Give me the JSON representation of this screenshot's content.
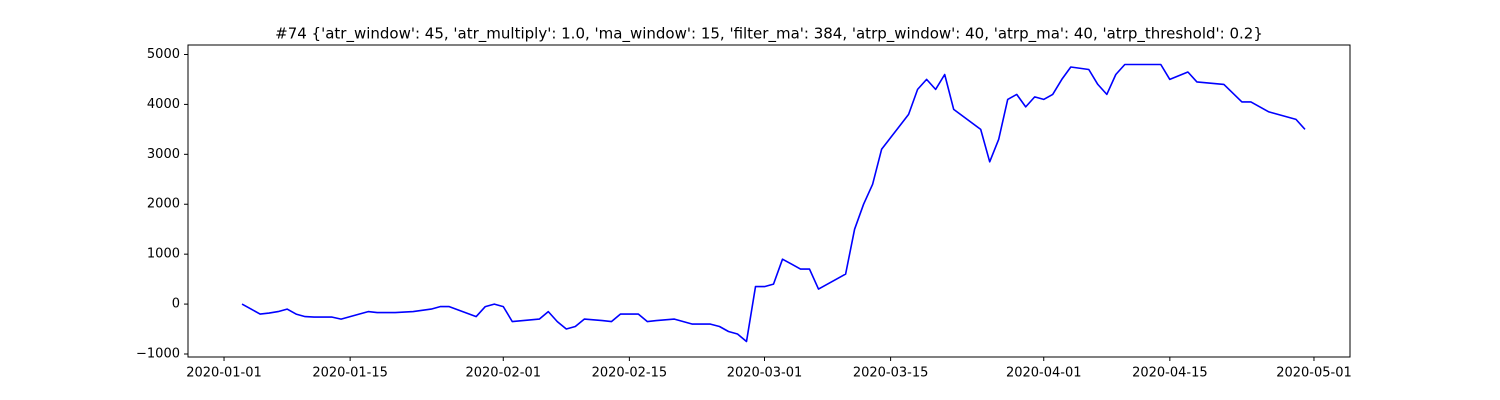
{
  "chart_data": {
    "type": "line",
    "title": "#74 {'atr_window': 45, 'atr_multiply': 1.0, 'ma_window': 15, 'filter_ma': 384, 'atrp_window': 40, 'atrp_ma': 40, 'atrp_threshold': 0.2}",
    "x": [
      "2020-01-03",
      "2020-01-04",
      "2020-01-05",
      "2020-01-06",
      "2020-01-07",
      "2020-01-08",
      "2020-01-09",
      "2020-01-10",
      "2020-01-11",
      "2020-01-13",
      "2020-01-14",
      "2020-01-15",
      "2020-01-16",
      "2020-01-17",
      "2020-01-18",
      "2020-01-20",
      "2020-01-22",
      "2020-01-24",
      "2020-01-25",
      "2020-01-26",
      "2020-01-29",
      "2020-01-30",
      "2020-01-31",
      "2020-02-01",
      "2020-02-02",
      "2020-02-05",
      "2020-02-06",
      "2020-02-07",
      "2020-02-08",
      "2020-02-09",
      "2020-02-10",
      "2020-02-12",
      "2020-02-13",
      "2020-02-14",
      "2020-02-16",
      "2020-02-17",
      "2020-02-18",
      "2020-02-20",
      "2020-02-22",
      "2020-02-24",
      "2020-02-25",
      "2020-02-26",
      "2020-02-27",
      "2020-02-28",
      "2020-02-29",
      "2020-03-01",
      "2020-03-02",
      "2020-03-03",
      "2020-03-04",
      "2020-03-05",
      "2020-03-06",
      "2020-03-07",
      "2020-03-09",
      "2020-03-10",
      "2020-03-11",
      "2020-03-12",
      "2020-03-13",
      "2020-03-14",
      "2020-03-17",
      "2020-03-18",
      "2020-03-19",
      "2020-03-20",
      "2020-03-21",
      "2020-03-22",
      "2020-03-25",
      "2020-03-26",
      "2020-03-27",
      "2020-03-28",
      "2020-03-29",
      "2020-03-30",
      "2020-03-31",
      "2020-04-01",
      "2020-04-02",
      "2020-04-03",
      "2020-04-04",
      "2020-04-06",
      "2020-04-07",
      "2020-04-08",
      "2020-04-09",
      "2020-04-10",
      "2020-04-14",
      "2020-04-15",
      "2020-04-17",
      "2020-04-18",
      "2020-04-21",
      "2020-04-23",
      "2020-04-24",
      "2020-04-26",
      "2020-04-29",
      "2020-04-30"
    ],
    "series": [
      {
        "color": "#0000ff",
        "values": [
          0,
          -100,
          -200,
          -180,
          -150,
          -100,
          -200,
          -250,
          -260,
          -260,
          -300,
          -250,
          -200,
          -150,
          -170,
          -170,
          -150,
          -100,
          -50,
          -50,
          -250,
          -50,
          0,
          -50,
          -350,
          -300,
          -150,
          -350,
          -500,
          -450,
          -300,
          -330,
          -350,
          -200,
          -200,
          -350,
          -330,
          -300,
          -400,
          -400,
          -450,
          -550,
          -600,
          -750,
          350,
          350,
          400,
          900,
          800,
          700,
          700,
          300,
          500,
          600,
          1500,
          2000,
          2400,
          3100,
          3800,
          4300,
          4500,
          4300,
          4600,
          3900,
          3500,
          2850,
          3300,
          4100,
          4200,
          3950,
          4150,
          4100,
          4200,
          4500,
          4750,
          4700,
          4400,
          4200,
          4600,
          4800,
          4800,
          4500,
          4650,
          4450,
          4400,
          4050,
          4050,
          3850,
          3700,
          3500
        ]
      }
    ],
    "xlim": [
      "2019-12-28",
      "2020-05-05"
    ],
    "xticks": [
      "2020-01-01",
      "2020-01-15",
      "2020-02-01",
      "2020-02-15",
      "2020-03-01",
      "2020-03-15",
      "2020-04-01",
      "2020-04-15",
      "2020-05-01"
    ],
    "ylim": [
      -1060,
      5190
    ],
    "yticks": [
      {
        "value": -1000,
        "label": "−1000"
      },
      0,
      1000,
      2000,
      3000,
      4000,
      5000
    ]
  }
}
